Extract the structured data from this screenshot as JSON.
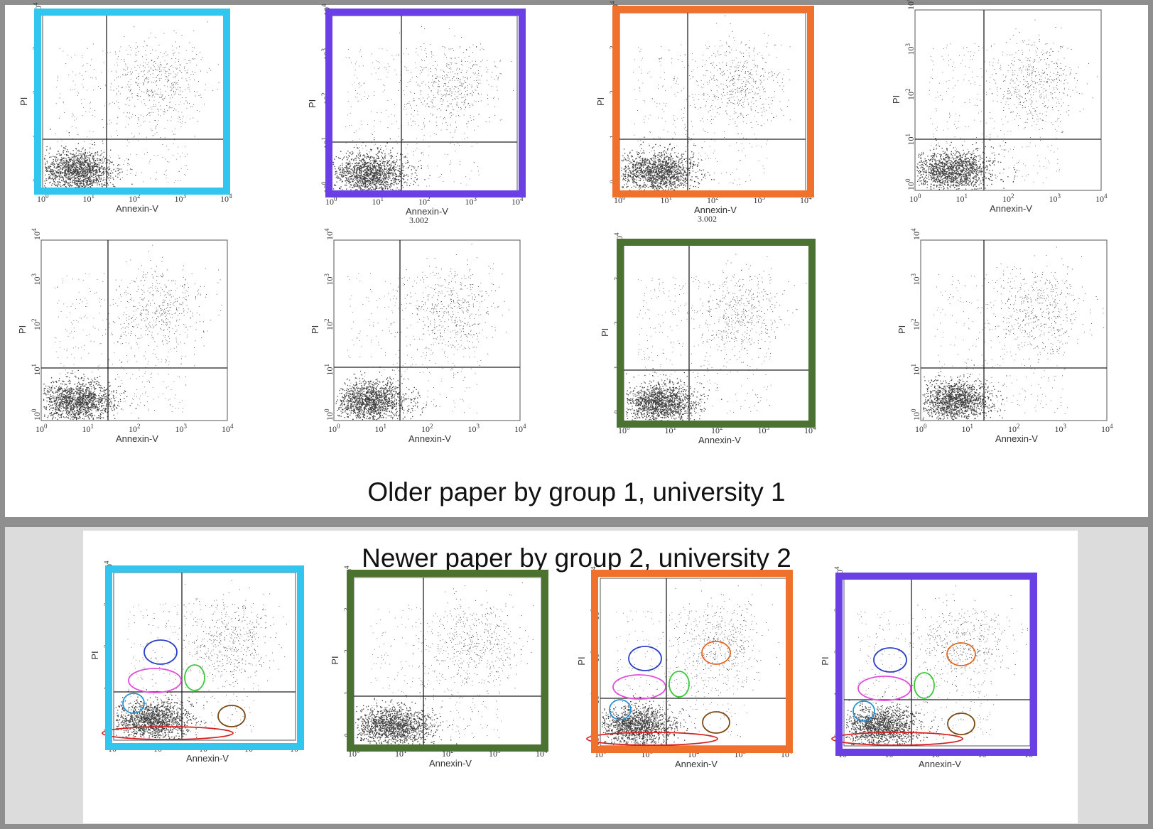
{
  "colors": {
    "cyan": "#32c5ee",
    "purple": "#6a3fe3",
    "orange": "#f0712c",
    "green": "#4c7231",
    "dots": "#3d3d3d",
    "panel_border": "#8f8f8f"
  },
  "captions": {
    "top": "Older paper by group 1, university 1",
    "bottom": "Newer paper by group 2, university 2"
  },
  "axis_labels": {
    "x": "Annexin-V",
    "y": "PI"
  },
  "tick_labels": [
    {
      "base": "10",
      "exp": "0"
    },
    {
      "base": "10",
      "exp": "1"
    },
    {
      "base": "10",
      "exp": "2"
    },
    {
      "base": "10",
      "exp": "3"
    },
    {
      "base": "10",
      "exp": "4"
    }
  ],
  "stray_label": "3.002",
  "outline_legend": {
    "blue": "#2b3fc6",
    "magenta": "#e04ddc",
    "green": "#38c83a",
    "light_blue": "#2a8fd0",
    "orange": "#e2661f",
    "brown": "#7a4a16",
    "red": "#d62020"
  },
  "chart_data": [
    {
      "type": "scatter",
      "panel": "top",
      "row": 1,
      "col": 1,
      "frame": "cyan",
      "gate_line_x": [
        10,
        10
      ],
      "xlim_log10": [
        0,
        4
      ],
      "ylim_log10": [
        0,
        4
      ]
    },
    {
      "type": "scatter",
      "panel": "top",
      "row": 1,
      "col": 2,
      "frame": "purple",
      "xlim_log10": [
        0,
        4
      ],
      "ylim_log10": [
        0,
        4
      ]
    },
    {
      "type": "scatter",
      "panel": "top",
      "row": 1,
      "col": 3,
      "frame": "orange",
      "xlim_log10": [
        0,
        4
      ],
      "ylim_log10": [
        0,
        4
      ]
    },
    {
      "type": "scatter",
      "panel": "top",
      "row": 1,
      "col": 4,
      "frame": "none",
      "xlim_log10": [
        0,
        4
      ],
      "ylim_log10": [
        0,
        4
      ]
    },
    {
      "type": "scatter",
      "panel": "top",
      "row": 2,
      "col": 1,
      "frame": "none",
      "xlim_log10": [
        0,
        4
      ],
      "ylim_log10": [
        0,
        4
      ]
    },
    {
      "type": "scatter",
      "panel": "top",
      "row": 2,
      "col": 2,
      "frame": "none",
      "xlim_log10": [
        0,
        4
      ],
      "ylim_log10": [
        0,
        4
      ]
    },
    {
      "type": "scatter",
      "panel": "top",
      "row": 2,
      "col": 3,
      "frame": "green",
      "xlim_log10": [
        0,
        4
      ],
      "ylim_log10": [
        0,
        4
      ]
    },
    {
      "type": "scatter",
      "panel": "top",
      "row": 2,
      "col": 4,
      "frame": "none",
      "xlim_log10": [
        0,
        4
      ],
      "ylim_log10": [
        0,
        4
      ]
    },
    {
      "type": "scatter",
      "panel": "bottom",
      "row": 1,
      "col": 1,
      "frame": "cyan",
      "outlines": true,
      "xlim_log10": [
        0,
        4
      ],
      "ylim_log10": [
        0,
        4
      ]
    },
    {
      "type": "scatter",
      "panel": "bottom",
      "row": 1,
      "col": 2,
      "frame": "green",
      "outlines": false,
      "xlim_log10": [
        0,
        4
      ],
      "ylim_log10": [
        0,
        4
      ]
    },
    {
      "type": "scatter",
      "panel": "bottom",
      "row": 1,
      "col": 3,
      "frame": "orange",
      "outlines": true,
      "xlim_log10": [
        0,
        4
      ],
      "ylim_log10": [
        0,
        4
      ]
    },
    {
      "type": "scatter",
      "panel": "bottom",
      "row": 1,
      "col": 4,
      "frame": "purple",
      "outlines": true,
      "xlim_log10": [
        0,
        4
      ],
      "ylim_log10": [
        0,
        4
      ]
    }
  ]
}
